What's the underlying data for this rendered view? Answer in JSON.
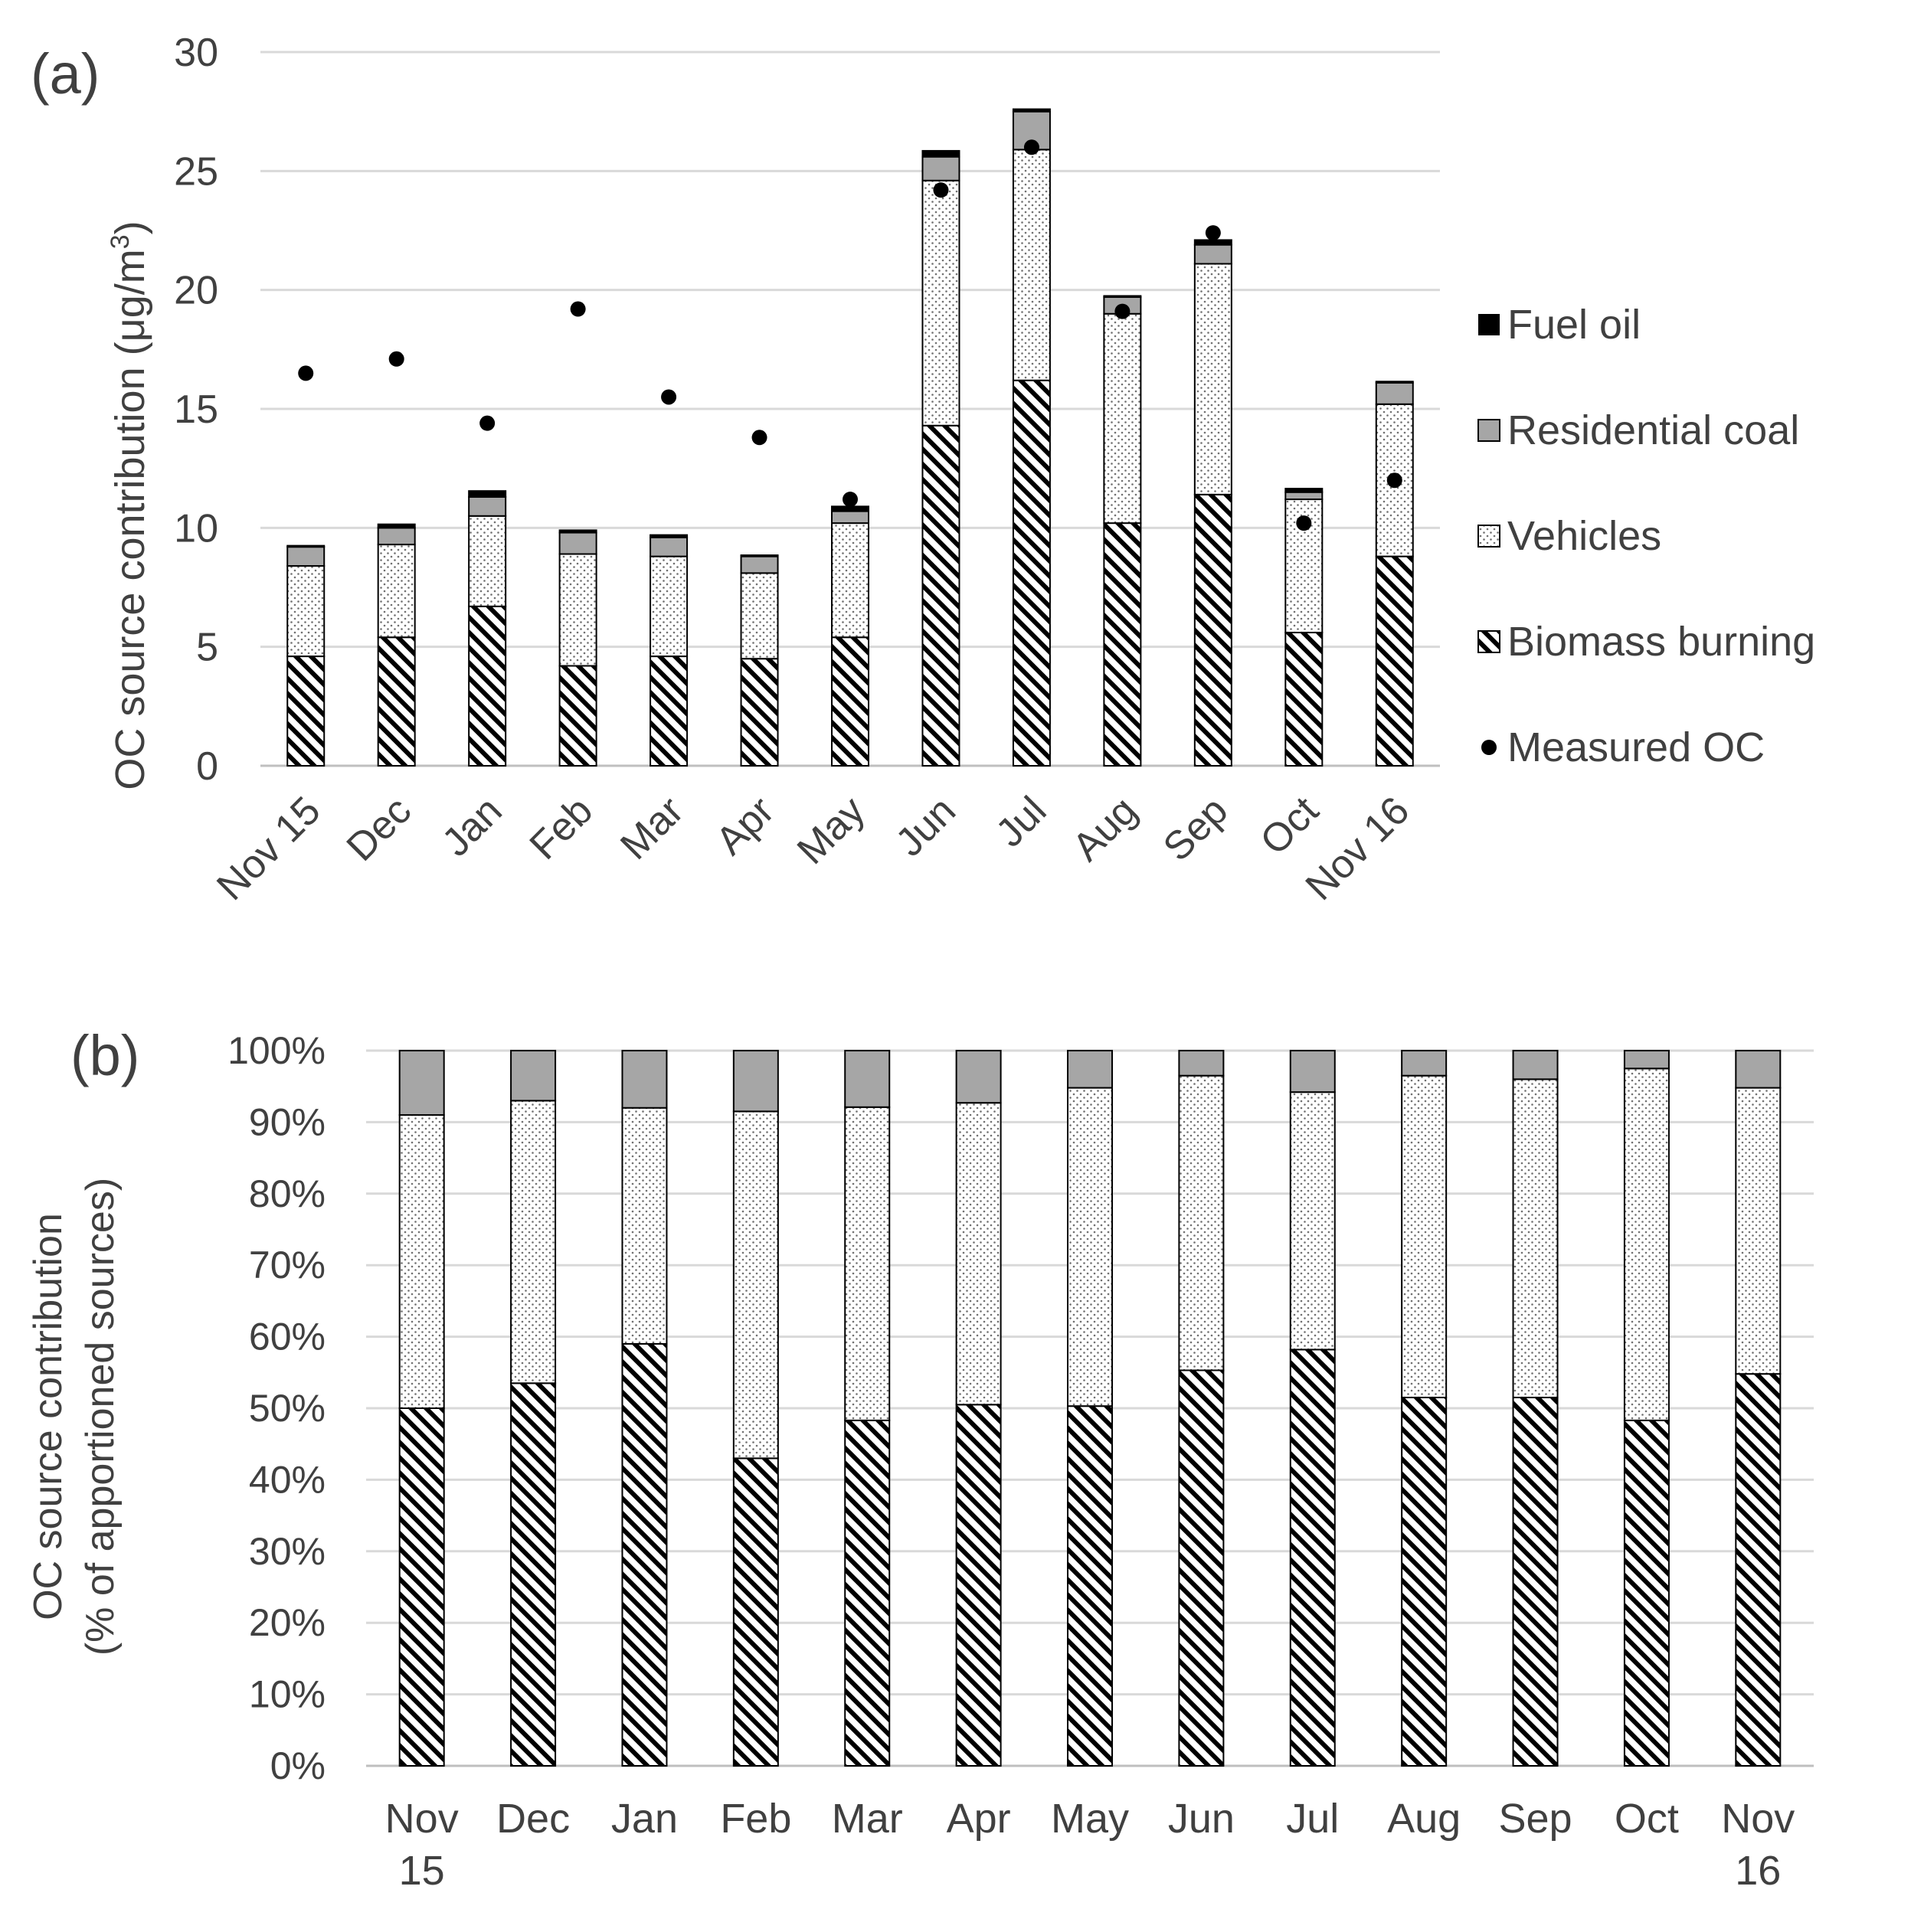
{
  "panels": [
    {
      "label": "(a)",
      "ylabel_main": "OC source contribution (μg/m",
      "ylabel_sup": "3",
      "ylabel_tail": ")",
      "ytick_labels": [
        "0",
        "5",
        "10",
        "15",
        "20",
        "25",
        "30"
      ],
      "categories": [
        "Nov 15",
        "Dec",
        "Jan",
        "Feb",
        "Mar",
        "Apr",
        "May",
        "Jun",
        "Jul",
        "Aug",
        "Sep",
        "Oct",
        "Nov 16"
      ],
      "legend": [
        "Fuel oil",
        "Residential coal",
        "Vehicles",
        "Biomass burning",
        "Measured OC"
      ]
    },
    {
      "label": "(b)",
      "ylabel_line1": "OC source contribution",
      "ylabel_line2": "(% of apportioned  sources)",
      "ytick_labels": [
        "0%",
        "10%",
        "20%",
        "30%",
        "40%",
        "50%",
        "60%",
        "70%",
        "80%",
        "90%",
        "100%"
      ],
      "categories": [
        [
          "Nov",
          "15"
        ],
        [
          "Dec"
        ],
        [
          "Jan"
        ],
        [
          "Feb"
        ],
        [
          "Mar"
        ],
        [
          "Apr"
        ],
        [
          "May"
        ],
        [
          "Jun"
        ],
        [
          "Jul"
        ],
        [
          "Aug"
        ],
        [
          "Sep"
        ],
        [
          "Oct"
        ],
        [
          "Nov",
          "16"
        ]
      ]
    }
  ],
  "chart_data": [
    {
      "type": "bar",
      "stacked": true,
      "categories": [
        "Nov 15",
        "Dec",
        "Jan",
        "Feb",
        "Mar",
        "Apr",
        "May",
        "Jun",
        "Jul",
        "Aug",
        "Sep",
        "Oct",
        "Nov 16"
      ],
      "ylim": [
        0,
        30
      ],
      "grid": true,
      "legend_position": "right",
      "series": [
        {
          "name": "Biomass burning",
          "pattern": "diagonal-hatch",
          "values": [
            4.6,
            5.4,
            6.7,
            4.2,
            4.6,
            4.5,
            5.4,
            14.3,
            16.2,
            10.2,
            11.4,
            5.6,
            8.8
          ]
        },
        {
          "name": "Vehicles",
          "pattern": "dots",
          "values": [
            3.8,
            3.9,
            3.8,
            4.7,
            4.2,
            3.6,
            4.8,
            10.3,
            9.7,
            8.8,
            9.7,
            5.6,
            6.4
          ]
        },
        {
          "name": "Residential coal",
          "color": "#a6a6a6",
          "values": [
            0.8,
            0.7,
            0.8,
            0.9,
            0.8,
            0.7,
            0.5,
            1.0,
            1.6,
            0.7,
            0.8,
            0.3,
            0.9
          ]
        },
        {
          "name": "Fuel oil",
          "color": "#000000",
          "values": [
            0.05,
            0.15,
            0.25,
            0.1,
            0.1,
            0.05,
            0.2,
            0.25,
            0.1,
            0.05,
            0.2,
            0.15,
            0.05
          ]
        }
      ],
      "points": {
        "name": "Measured OC",
        "color": "#000000",
        "values": [
          16.5,
          17.1,
          14.4,
          19.2,
          15.5,
          13.8,
          11.2,
          24.2,
          26.0,
          19.1,
          22.4,
          10.2,
          12.0
        ]
      }
    },
    {
      "type": "bar",
      "stacked": true,
      "categories": [
        "Nov 15",
        "Dec",
        "Jan",
        "Feb",
        "Mar",
        "Apr",
        "May",
        "Jun",
        "Jul",
        "Aug",
        "Sep",
        "Oct",
        "Nov 16"
      ],
      "ylim": [
        0,
        100
      ],
      "grid": true,
      "series": [
        {
          "name": "Biomass burning",
          "pattern": "diagonal-hatch",
          "values": [
            50,
            53.5,
            59,
            43,
            48.3,
            50.5,
            50.3,
            55.3,
            58.2,
            51.5,
            51.5,
            48.3,
            54.8
          ]
        },
        {
          "name": "Vehicles",
          "pattern": "dots",
          "values": [
            41,
            39.5,
            33,
            48.5,
            43.8,
            42.2,
            44.5,
            41.2,
            36,
            45,
            44.5,
            49.2,
            40
          ]
        },
        {
          "name": "Residential coal",
          "color": "#a6a6a6",
          "values": [
            9,
            7,
            8,
            8.5,
            7.9,
            7.3,
            5.2,
            3.5,
            5.8,
            3.5,
            4.0,
            2.5,
            5.2
          ]
        }
      ]
    }
  ]
}
